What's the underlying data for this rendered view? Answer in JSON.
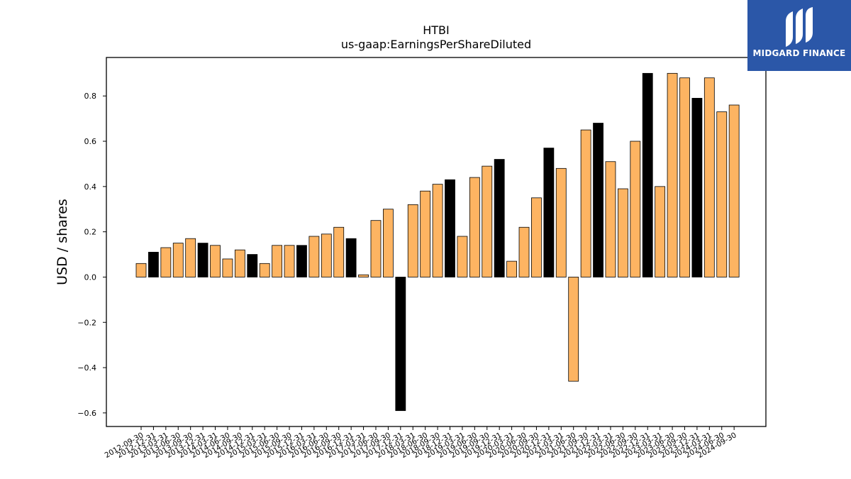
{
  "logo": {
    "text": "MIDGARD FINANCE"
  },
  "chart_data": {
    "type": "bar",
    "title": "HTBI",
    "subtitle": "us-gaap:EarningsPerShareDiluted",
    "xlabel": "",
    "ylabel": "USD / shares",
    "ylim": [
      -0.66,
      0.97
    ],
    "yticks": [
      -0.6,
      -0.4,
      -0.2,
      0.0,
      0.2,
      0.4,
      0.6,
      0.8
    ],
    "ytick_labels": [
      "−0.6",
      "−0.4",
      "−0.2",
      "0.0",
      "0.2",
      "0.4",
      "0.6",
      "0.8"
    ],
    "grid": false,
    "colors": {
      "quarter": "#fdb462",
      "annual": "#000000",
      "edge": "#000000"
    },
    "categories": [
      "2012-09-30",
      "2012-12-31",
      "2013-03-31",
      "2013-06-30",
      "2013-09-30",
      "2013-12-31",
      "2014-03-31",
      "2014-06-30",
      "2014-09-30",
      "2014-12-31",
      "2015-03-31",
      "2015-06-30",
      "2015-09-30",
      "2015-12-31",
      "2016-03-31",
      "2016-06-30",
      "2016-09-30",
      "2016-12-31",
      "2017-03-31",
      "2017-06-30",
      "2017-09-30",
      "2017-12-31",
      "2018-03-31",
      "2018-06-30",
      "2018-09-30",
      "2018-12-31",
      "2019-03-31",
      "2019-06-30",
      "2019-09-30",
      "2019-12-31",
      "2020-03-31",
      "2020-06-30",
      "2020-09-30",
      "2020-12-31",
      "2021-03-31",
      "2021-06-30",
      "2021-09-30",
      "2021-12-31",
      "2022-03-31",
      "2022-06-30",
      "2022-09-30",
      "2022-12-31",
      "2023-03-31",
      "2023-06-30",
      "2023-09-30",
      "2023-12-31",
      "2024-03-31",
      "2024-06-30",
      "2024-09-30"
    ],
    "values": [
      0.06,
      0.11,
      0.13,
      0.15,
      0.17,
      0.15,
      0.14,
      0.08,
      0.12,
      0.1,
      0.06,
      0.14,
      0.14,
      0.14,
      0.18,
      0.19,
      0.22,
      0.17,
      0.01,
      0.25,
      0.3,
      -0.59,
      0.32,
      0.38,
      0.41,
      0.43,
      0.18,
      0.44,
      0.49,
      0.52,
      0.07,
      0.22,
      0.35,
      0.57,
      0.48,
      -0.46,
      0.65,
      0.68,
      0.51,
      0.39,
      0.6,
      0.9,
      0.4,
      0.9,
      0.88,
      0.79,
      0.88,
      0.73,
      0.76
    ],
    "bar_kind": [
      "q",
      "a",
      "q",
      "q",
      "q",
      "a",
      "q",
      "q",
      "q",
      "a",
      "q",
      "q",
      "q",
      "a",
      "q",
      "q",
      "q",
      "a",
      "q",
      "q",
      "q",
      "a",
      "q",
      "q",
      "q",
      "a",
      "q",
      "q",
      "q",
      "a",
      "q",
      "q",
      "q",
      "a",
      "q",
      "q",
      "q",
      "a",
      "q",
      "q",
      "q",
      "a",
      "q",
      "q",
      "q",
      "a",
      "q",
      "q",
      "q"
    ]
  }
}
